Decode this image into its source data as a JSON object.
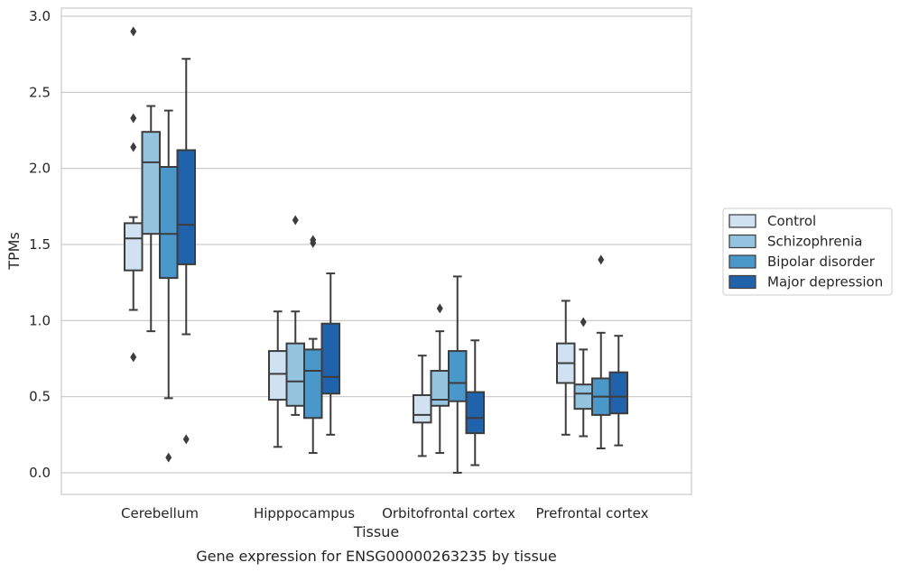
{
  "caption": "Gene expression for ENSG00000263235 by tissue",
  "chart_data": {
    "type": "box",
    "title": "",
    "xlabel": "Tissue",
    "ylabel": "TPMs",
    "ylim": [
      -0.14,
      3.05
    ],
    "yticks": [
      "0.0",
      "0.5",
      "1.0",
      "1.5",
      "2.0",
      "2.5",
      "3.0"
    ],
    "grid": "horizontal",
    "legend_position": "right",
    "categories": [
      "Cerebellum",
      "Hipppocampus",
      "Orbitofrontal cortex",
      "Prefrontal cortex"
    ],
    "series": [
      {
        "name": "Control",
        "color": "#d0e1f2",
        "boxes": [
          {
            "whislo": 1.07,
            "q1": 1.33,
            "med": 1.54,
            "q3": 1.64,
            "whishi": 1.68,
            "fliers": [
              2.9,
              2.33,
              2.14,
              0.76
            ]
          },
          {
            "whislo": 0.17,
            "q1": 0.48,
            "med": 0.65,
            "q3": 0.8,
            "whishi": 1.06,
            "fliers": []
          },
          {
            "whislo": 0.11,
            "q1": 0.33,
            "med": 0.38,
            "q3": 0.51,
            "whishi": 0.77,
            "fliers": []
          },
          {
            "whislo": 0.25,
            "q1": 0.59,
            "med": 0.72,
            "q3": 0.85,
            "whishi": 1.13,
            "fliers": []
          }
        ]
      },
      {
        "name": "Schizophrenia",
        "color": "#94c4df",
        "boxes": [
          {
            "whislo": 0.93,
            "q1": 1.57,
            "med": 2.04,
            "q3": 2.24,
            "whishi": 2.41,
            "fliers": []
          },
          {
            "whislo": 0.38,
            "q1": 0.44,
            "med": 0.6,
            "q3": 0.85,
            "whishi": 1.06,
            "fliers": [
              1.66
            ]
          },
          {
            "whislo": 0.13,
            "q1": 0.44,
            "med": 0.48,
            "q3": 0.67,
            "whishi": 0.93,
            "fliers": [
              1.08
            ]
          },
          {
            "whislo": 0.24,
            "q1": 0.42,
            "med": 0.52,
            "q3": 0.58,
            "whishi": 0.81,
            "fliers": [
              0.99
            ]
          }
        ]
      },
      {
        "name": "Bipolar disorder",
        "color": "#4a98c9",
        "boxes": [
          {
            "whislo": 0.49,
            "q1": 1.28,
            "med": 1.57,
            "q3": 2.01,
            "whishi": 2.38,
            "fliers": [
              0.1
            ]
          },
          {
            "whislo": 0.13,
            "q1": 0.36,
            "med": 0.67,
            "q3": 0.81,
            "whishi": 0.88,
            "fliers": [
              1.53,
              1.51
            ]
          },
          {
            "whislo": 0.0,
            "q1": 0.47,
            "med": 0.59,
            "q3": 0.8,
            "whishi": 1.29,
            "fliers": []
          },
          {
            "whislo": 0.16,
            "q1": 0.38,
            "med": 0.5,
            "q3": 0.62,
            "whishi": 0.92,
            "fliers": [
              1.4
            ]
          }
        ]
      },
      {
        "name": "Major depression",
        "color": "#2163aa",
        "boxes": [
          {
            "whislo": 0.91,
            "q1": 1.37,
            "med": 1.63,
            "q3": 2.12,
            "whishi": 2.72,
            "fliers": [
              0.22
            ]
          },
          {
            "whislo": 0.25,
            "q1": 0.52,
            "med": 0.63,
            "q3": 0.98,
            "whishi": 1.31,
            "fliers": []
          },
          {
            "whislo": 0.05,
            "q1": 0.26,
            "med": 0.36,
            "q3": 0.53,
            "whishi": 0.87,
            "fliers": []
          },
          {
            "whislo": 0.18,
            "q1": 0.39,
            "med": 0.5,
            "q3": 0.66,
            "whishi": 0.9,
            "fliers": []
          }
        ]
      }
    ]
  }
}
